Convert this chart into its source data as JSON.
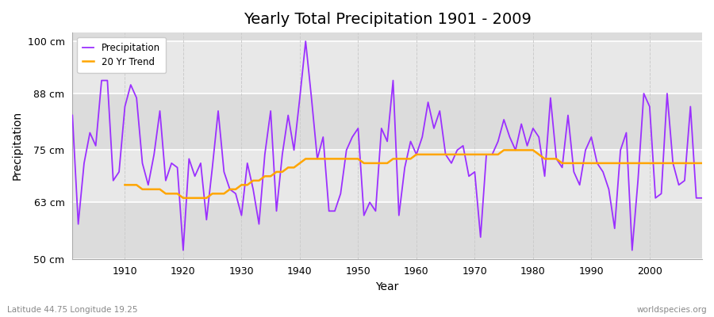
{
  "title": "Yearly Total Precipitation 1901 - 2009",
  "xlabel": "Year",
  "ylabel": "Precipitation",
  "subtitle_left": "Latitude 44.75 Longitude 19.25",
  "subtitle_right": "worldspecies.org",
  "ylim": [
    50,
    102
  ],
  "yticks": [
    50,
    63,
    75,
    88,
    100
  ],
  "ytick_labels": [
    "50 cm",
    "63 cm",
    "75 cm",
    "88 cm",
    "100 cm"
  ],
  "xlim": [
    1901,
    2009
  ],
  "precip_color": "#9B30FF",
  "trend_color": "#FFA500",
  "bg_color": "#FFFFFF",
  "plot_bg_color": "#E8E8E8",
  "band_color_dark": "#DCDCDC",
  "band_color_light": "#E8E8E8",
  "grid_color_h": "#FFFFFF",
  "grid_color_v": "#CCCCCC",
  "xticks": [
    1910,
    1920,
    1930,
    1940,
    1950,
    1960,
    1970,
    1980,
    1990,
    2000
  ],
  "years": [
    1901,
    1902,
    1903,
    1904,
    1905,
    1906,
    1907,
    1908,
    1909,
    1910,
    1911,
    1912,
    1913,
    1914,
    1915,
    1916,
    1917,
    1918,
    1919,
    1920,
    1921,
    1922,
    1923,
    1924,
    1925,
    1926,
    1927,
    1928,
    1929,
    1930,
    1931,
    1932,
    1933,
    1934,
    1935,
    1936,
    1937,
    1938,
    1939,
    1940,
    1941,
    1942,
    1943,
    1944,
    1945,
    1946,
    1947,
    1948,
    1949,
    1950,
    1951,
    1952,
    1953,
    1954,
    1955,
    1956,
    1957,
    1958,
    1959,
    1960,
    1961,
    1962,
    1963,
    1964,
    1965,
    1966,
    1967,
    1968,
    1969,
    1970,
    1971,
    1972,
    1973,
    1974,
    1975,
    1976,
    1977,
    1978,
    1979,
    1980,
    1981,
    1982,
    1983,
    1984,
    1985,
    1986,
    1987,
    1988,
    1989,
    1990,
    1991,
    1992,
    1993,
    1994,
    1995,
    1996,
    1997,
    1998,
    1999,
    2000,
    2001,
    2002,
    2003,
    2004,
    2005,
    2006,
    2007,
    2008,
    2009
  ],
  "precipitation": [
    83,
    58,
    72,
    79,
    76,
    91,
    91,
    68,
    70,
    85,
    90,
    87,
    72,
    67,
    74,
    84,
    68,
    72,
    71,
    52,
    73,
    69,
    72,
    59,
    71,
    84,
    70,
    66,
    65,
    60,
    72,
    66,
    58,
    74,
    84,
    61,
    74,
    83,
    75,
    87,
    100,
    87,
    73,
    78,
    61,
    61,
    65,
    75,
    78,
    80,
    60,
    63,
    61,
    80,
    77,
    91,
    60,
    71,
    77,
    74,
    78,
    86,
    80,
    84,
    74,
    72,
    75,
    76,
    69,
    70,
    55,
    74,
    74,
    77,
    82,
    78,
    75,
    81,
    76,
    80,
    78,
    69,
    87,
    73,
    71,
    83,
    70,
    67,
    75,
    78,
    72,
    70,
    66,
    57,
    75,
    79,
    52,
    68,
    88,
    85,
    64,
    65,
    88,
    72,
    67,
    68,
    85,
    64,
    64
  ],
  "trend": [
    null,
    null,
    null,
    null,
    null,
    null,
    null,
    null,
    null,
    67,
    67,
    67,
    66,
    66,
    66,
    66,
    65,
    65,
    65,
    64,
    64,
    64,
    64,
    64,
    65,
    65,
    65,
    66,
    66,
    67,
    67,
    68,
    68,
    69,
    69,
    70,
    70,
    71,
    71,
    72,
    73,
    73,
    73,
    73,
    73,
    73,
    73,
    73,
    73,
    73,
    72,
    72,
    72,
    72,
    72,
    73,
    73,
    73,
    73,
    74,
    74,
    74,
    74,
    74,
    74,
    74,
    74,
    74,
    74,
    74,
    74,
    74,
    74,
    74,
    75,
    75,
    75,
    75,
    75,
    75,
    74,
    73,
    73,
    73,
    72,
    72,
    72,
    72,
    72,
    72,
    72,
    72,
    72,
    72,
    72,
    72,
    72,
    72,
    72,
    72,
    72,
    72,
    72,
    72,
    72,
    72,
    72,
    72,
    72
  ]
}
